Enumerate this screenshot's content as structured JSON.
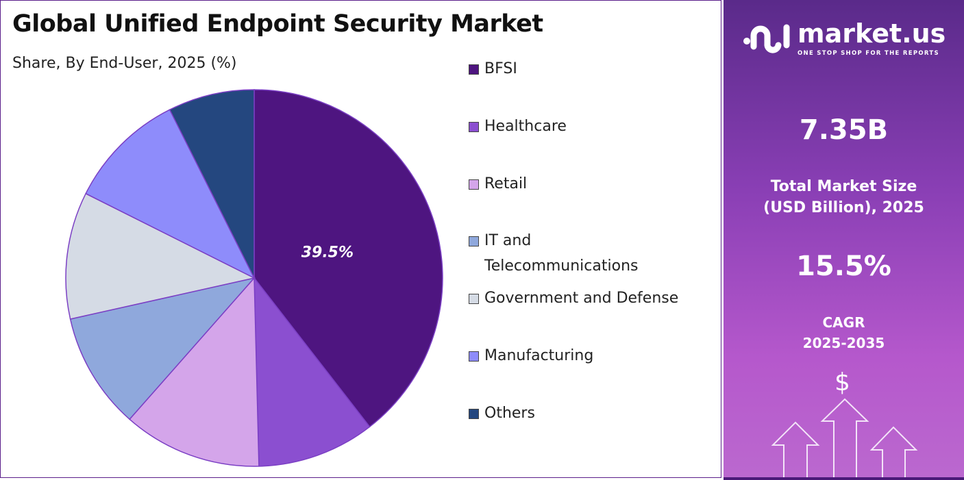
{
  "chart_data": {
    "type": "pie",
    "title": "Global Unified Endpoint Security Market",
    "subtitle": "Share, By End-User, 2025 (%)",
    "categories": [
      "BFSI",
      "Healthcare",
      "Retail",
      "IT and Telecommunications",
      "Government and Defense",
      "Manufacturing",
      "Others"
    ],
    "legend_lines": [
      [
        "BFSI"
      ],
      [
        "Healthcare"
      ],
      [
        "Retail"
      ],
      [
        "IT and",
        "Telecommunications"
      ],
      [
        "Government and Defense"
      ],
      [
        "Manufacturing"
      ],
      [
        "Others"
      ]
    ],
    "values": [
      39.5,
      10.1,
      11.9,
      10.0,
      10.9,
      10.2,
      7.4
    ],
    "colors": [
      "#4E1580",
      "#8B4FD0",
      "#D4A5EA",
      "#8FA8DC",
      "#D5DBE5",
      "#8E8CFB",
      "#24477F"
    ],
    "data_labels": [
      "39.5%",
      "",
      "",
      "",
      "",
      "",
      ""
    ],
    "legend_position": "right"
  },
  "brand": {
    "name": "market.us",
    "tagline": "ONE STOP SHOP FOR THE REPORTS"
  },
  "stats": {
    "market_size": "7.35B",
    "market_size_label_1": "Total Market Size",
    "market_size_label_2": "(USD Billion), 2025",
    "cagr": "15.5%",
    "cagr_label_1": "CAGR",
    "cagr_label_2": "2025-2035",
    "currency_symbol": "$"
  }
}
